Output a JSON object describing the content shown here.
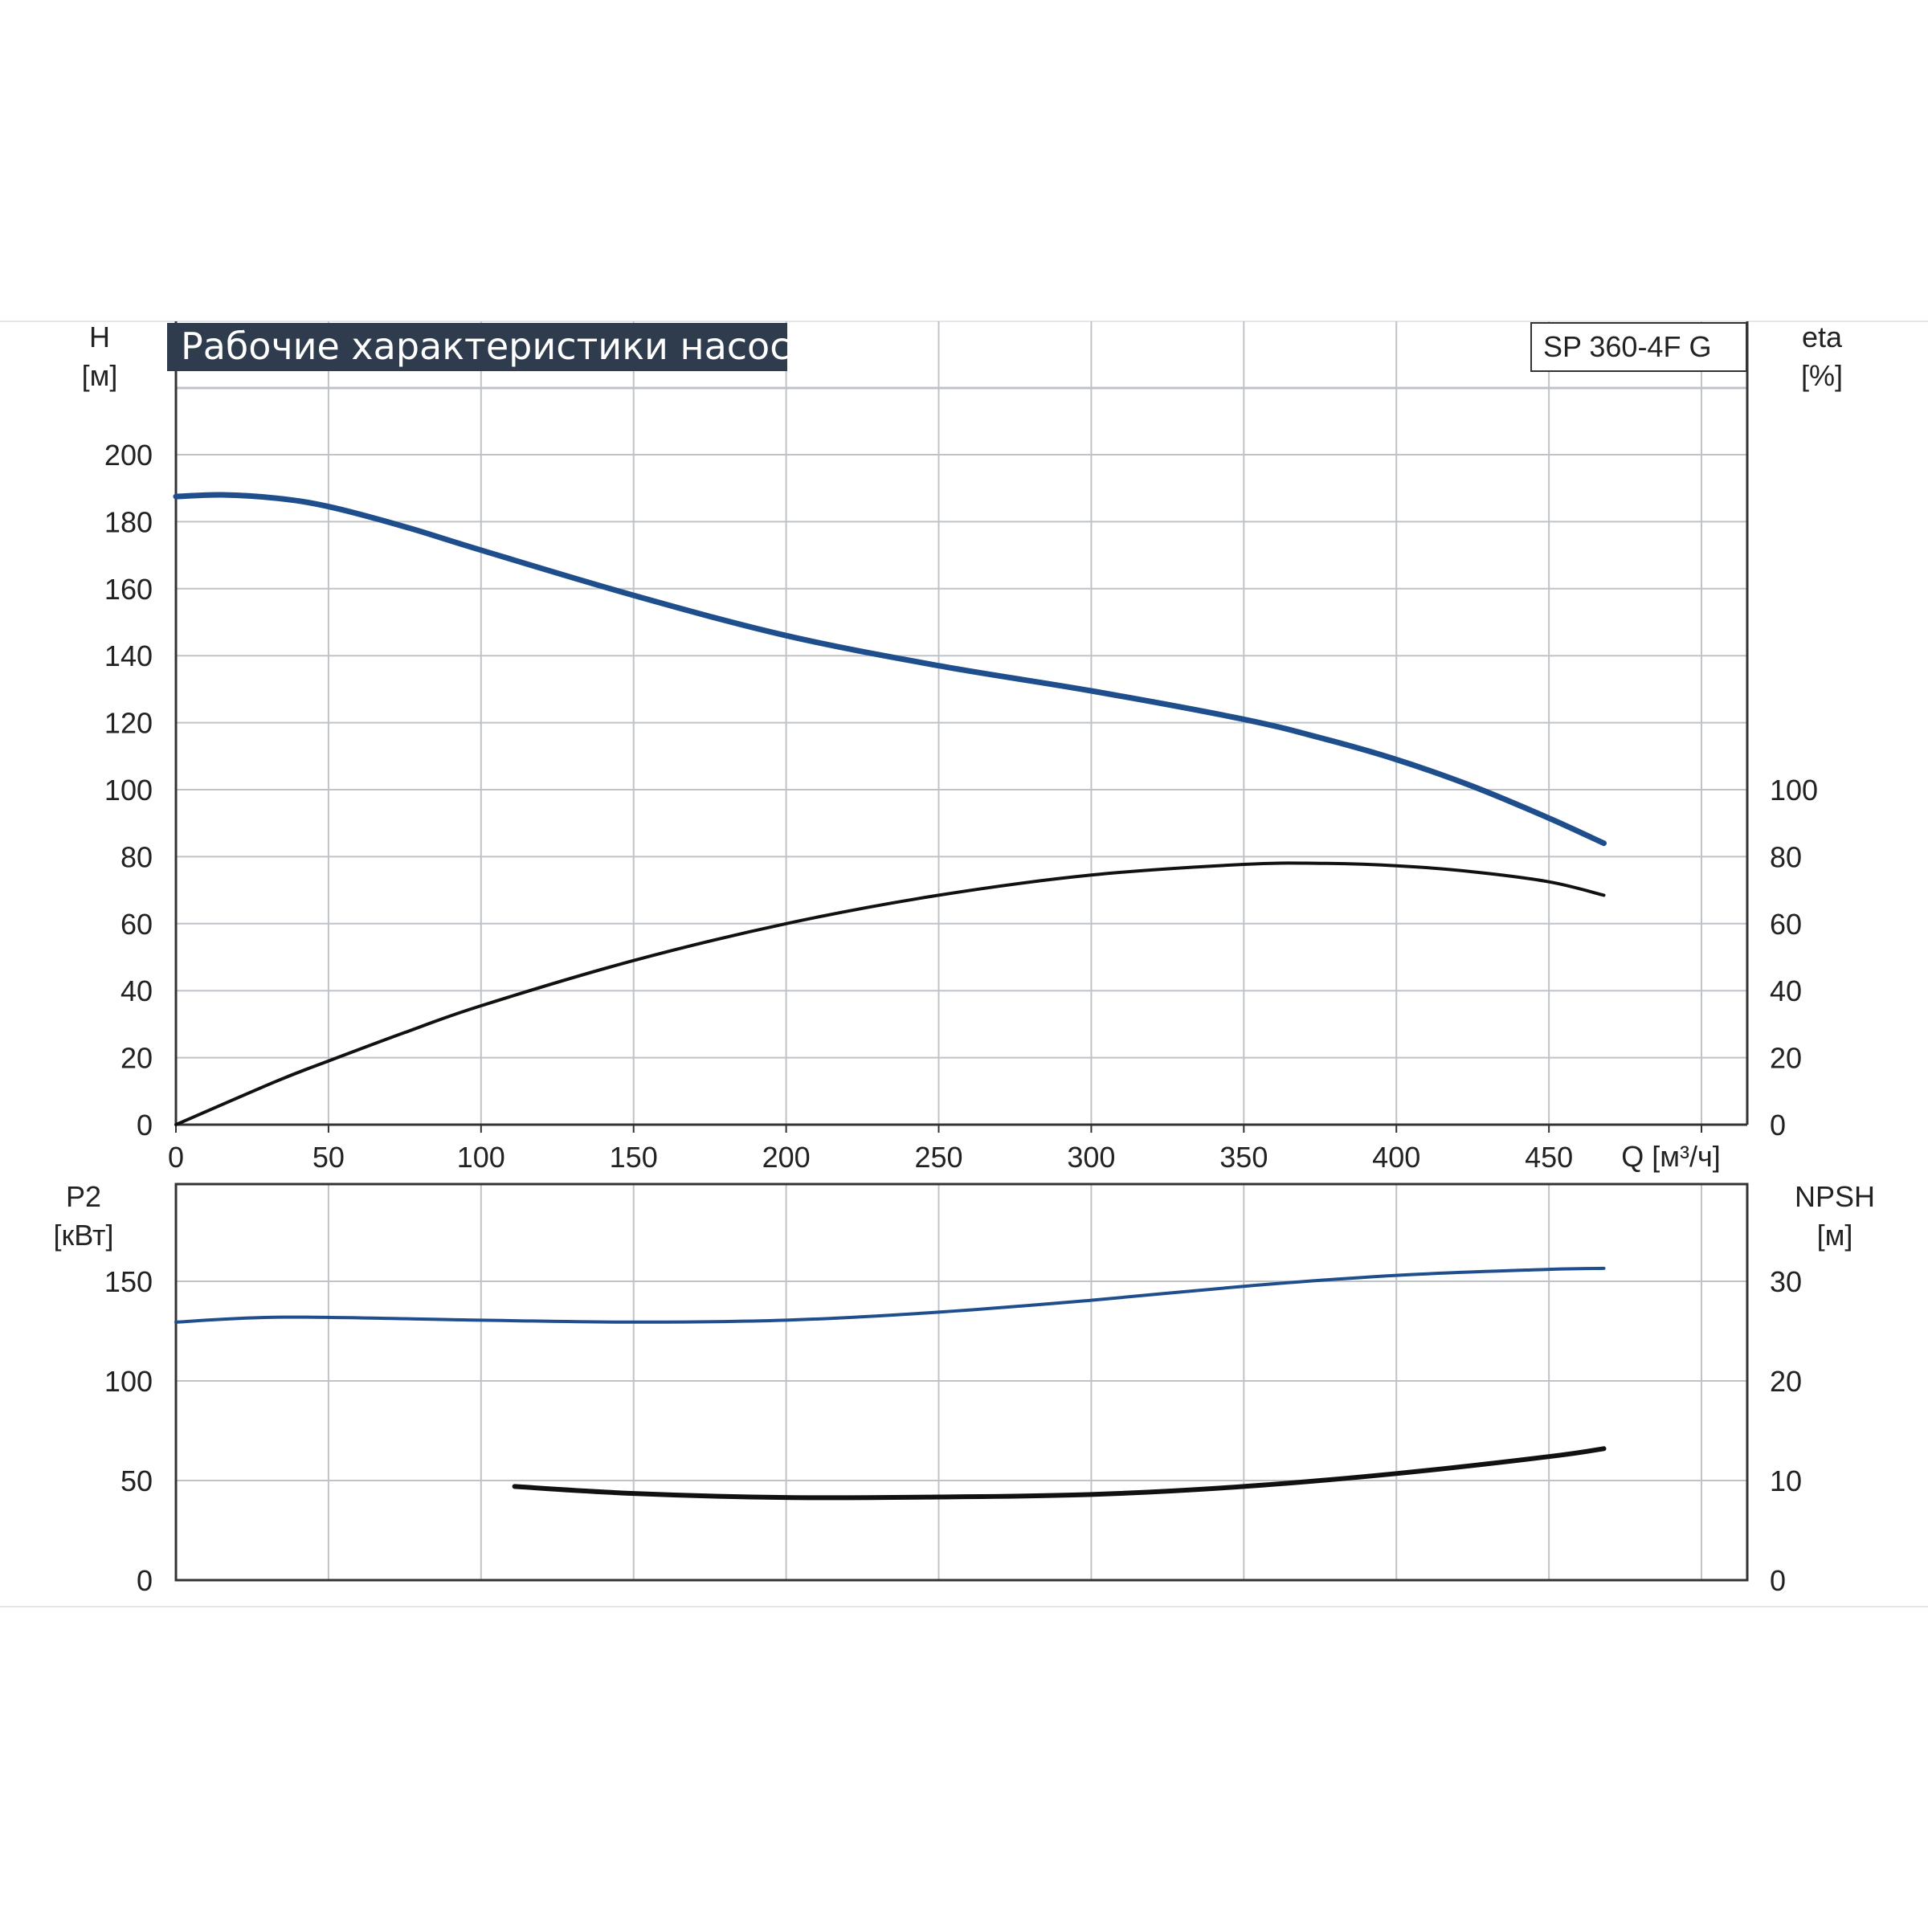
{
  "title": "Рабочие характеристики насоса",
  "model": "SP 360-4F G",
  "colors": {
    "title_bg": "#2e3c4e",
    "grid": "#bfc3c8",
    "axis": "#333333",
    "head_curve": "#1f4e8c",
    "eta_curve": "#111111",
    "p2_curve": "#1f4e8c",
    "npsh_curve": "#111111"
  },
  "chart_data": [
    {
      "type": "line",
      "name": "performance",
      "title": "Рабочие характеристики насоса",
      "model": "SP 360-4F G",
      "x_label": "Q [м³/ч]",
      "x_ticks": [
        "0",
        "50",
        "100",
        "150",
        "200",
        "250",
        "300",
        "350",
        "400",
        "450"
      ],
      "xlim": [
        0,
        515
      ],
      "grid": true,
      "y_left": {
        "label_line1": "H",
        "label_line2": "[м]",
        "ticks": [
          "0",
          "20",
          "40",
          "60",
          "80",
          "100",
          "120",
          "140",
          "160",
          "180",
          "200"
        ],
        "ylim": [
          0,
          220
        ]
      },
      "y_right": {
        "label_line1": "eta",
        "label_line2": "[%]",
        "ticks": [
          "0",
          "20",
          "40",
          "60",
          "80",
          "100"
        ],
        "ylim": [
          0,
          220
        ]
      },
      "series": [
        {
          "key": "head",
          "axis": "left",
          "x": [
            0,
            15,
            33,
            50,
            75,
            100,
            150,
            200,
            250,
            300,
            350,
            375,
            400,
            425,
            450,
            468
          ],
          "y": [
            187.5,
            188,
            187,
            184.5,
            178.5,
            171.5,
            158,
            146,
            137,
            129.5,
            121,
            115.5,
            109,
            101,
            91.5,
            84
          ]
        },
        {
          "key": "eta",
          "axis": "right",
          "x": [
            0,
            33,
            50,
            75,
            100,
            150,
            200,
            250,
            300,
            350,
            375,
            400,
            425,
            450,
            468
          ],
          "y": [
            0,
            13,
            19,
            27.5,
            35.5,
            49,
            60,
            68.5,
            74.5,
            77.7,
            78,
            77.3,
            75.5,
            72.5,
            68.5
          ]
        }
      ]
    },
    {
      "type": "line",
      "name": "power-npsh",
      "xlim": [
        0,
        515
      ],
      "grid": true,
      "y_left": {
        "label_line1": "P2",
        "label_line2": "[кВт]",
        "ticks": [
          "0",
          "50",
          "100",
          "150"
        ],
        "ylim": [
          0,
          185
        ]
      },
      "y_right": {
        "label_line1": "NPSH",
        "label_line2": "[м]",
        "ticks": [
          "0",
          "10",
          "20",
          "30"
        ],
        "ylim": [
          0,
          37
        ]
      },
      "series": [
        {
          "key": "p2",
          "axis": "left",
          "x": [
            0,
            35,
            100,
            150,
            200,
            250,
            300,
            350,
            400,
            450,
            468
          ],
          "y": [
            129.5,
            132,
            130.5,
            129.5,
            130.5,
            134.5,
            140.5,
            147.5,
            153,
            156,
            156.5
          ]
        },
        {
          "key": "npsh",
          "axis": "right",
          "x": [
            111,
            150,
            200,
            250,
            300,
            350,
            400,
            450,
            468
          ],
          "y": [
            9.4,
            8.7,
            8.3,
            8.35,
            8.6,
            9.4,
            10.7,
            12.4,
            13.2
          ]
        }
      ]
    }
  ]
}
